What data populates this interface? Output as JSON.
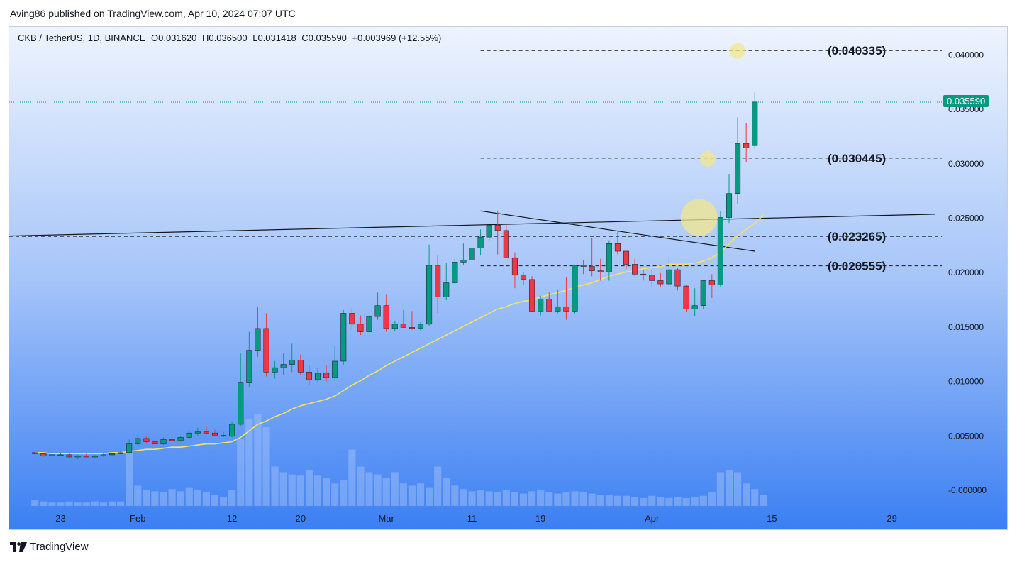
{
  "header": {
    "published": "Aving86 published on TradingView.com, Apr 10, 2024 07:07 UTC"
  },
  "legend": {
    "symbol": "CKB / TetherUS, 1D, BINANCE",
    "open": "O0.031620",
    "high": "H0.036500",
    "low": "L0.031418",
    "close": "C0.035590",
    "change": "+0.003969 (+12.55%)"
  },
  "footer": {
    "brand": "TradingView"
  },
  "colors": {
    "up": "#089981",
    "down": "#f23645",
    "ma": "#f5e26b",
    "bg_top": "#e8f0fe",
    "bg_bottom": "#3d80f5",
    "highlight": "#f3e78c"
  },
  "chart_data": {
    "type": "candlestick",
    "symbol": "CKB / TetherUS",
    "timeframe": "1D",
    "exchange": "BINANCE",
    "y_ticks": [
      "0.040000",
      "0.035000",
      "0.030000",
      "0.025000",
      "0.020000",
      "0.015000",
      "0.010000",
      "0.005000",
      "-0.000000"
    ],
    "y_tick_values": [
      0.04,
      0.035,
      0.03,
      0.025,
      0.02,
      0.015,
      0.01,
      0.005,
      0
    ],
    "ylim": [
      -0.0015,
      0.0425
    ],
    "x_ticks": [
      {
        "label": "23",
        "day": 3
      },
      {
        "label": "Feb",
        "day": 12
      },
      {
        "label": "12",
        "day": 23
      },
      {
        "label": "20",
        "day": 31
      },
      {
        "label": "Mar",
        "day": 41
      },
      {
        "label": "11",
        "day": 51
      },
      {
        "label": "19",
        "day": 59
      },
      {
        "label": "Apr",
        "day": 72
      },
      {
        "label": "15",
        "day": 86
      },
      {
        "label": "29",
        "day": 100
      }
    ],
    "x_range": [
      -3,
      105
    ],
    "last_price": "0.035590",
    "levels": [
      {
        "value": 0.040335,
        "label": "(0.040335)",
        "start_day": 52
      },
      {
        "value": 0.030445,
        "label": "(0.030445)",
        "start_day": 52
      },
      {
        "value": 0.023265,
        "label": "(0.023265)",
        "start_day": -3
      },
      {
        "value": 0.020555,
        "label": "(0.020555)",
        "start_day": 52
      }
    ],
    "trendlines": [
      {
        "x1": -3,
        "y1": 0.0233,
        "x2": 105,
        "y2": 0.0253
      },
      {
        "x1": 52,
        "y1": 0.0256,
        "x2": 84,
        "y2": 0.0219
      }
    ],
    "highlights": [
      {
        "day": 82,
        "value": 0.0403,
        "r": "small"
      },
      {
        "day": 78.5,
        "value": 0.0304,
        "r": "small"
      },
      {
        "day": 77.5,
        "value": 0.025,
        "r": "large"
      }
    ],
    "candles": [
      {
        "o": 0.0034,
        "h": 0.0035,
        "l": 0.0031,
        "c": 0.0033
      },
      {
        "o": 0.0033,
        "h": 0.0034,
        "l": 0.003,
        "c": 0.0031
      },
      {
        "o": 0.0031,
        "h": 0.0033,
        "l": 0.003,
        "c": 0.0032
      },
      {
        "o": 0.0032,
        "h": 0.0034,
        "l": 0.0031,
        "c": 0.0032
      },
      {
        "o": 0.0032,
        "h": 0.0033,
        "l": 0.0029,
        "c": 0.003
      },
      {
        "o": 0.003,
        "h": 0.0032,
        "l": 0.0028,
        "c": 0.0031
      },
      {
        "o": 0.0031,
        "h": 0.0033,
        "l": 0.003,
        "c": 0.003
      },
      {
        "o": 0.003,
        "h": 0.0032,
        "l": 0.0029,
        "c": 0.0031
      },
      {
        "o": 0.0031,
        "h": 0.0034,
        "l": 0.003,
        "c": 0.0032
      },
      {
        "o": 0.0032,
        "h": 0.0034,
        "l": 0.0031,
        "c": 0.0033
      },
      {
        "o": 0.0033,
        "h": 0.0036,
        "l": 0.0032,
        "c": 0.0034
      },
      {
        "o": 0.0034,
        "h": 0.0046,
        "l": 0.0033,
        "c": 0.0042
      },
      {
        "o": 0.0042,
        "h": 0.0051,
        "l": 0.004,
        "c": 0.0047
      },
      {
        "o": 0.0047,
        "h": 0.0049,
        "l": 0.0043,
        "c": 0.0044
      },
      {
        "o": 0.0044,
        "h": 0.0046,
        "l": 0.0041,
        "c": 0.0042
      },
      {
        "o": 0.0042,
        "h": 0.0048,
        "l": 0.0041,
        "c": 0.0046
      },
      {
        "o": 0.0046,
        "h": 0.0047,
        "l": 0.0043,
        "c": 0.0045
      },
      {
        "o": 0.0045,
        "h": 0.0049,
        "l": 0.0044,
        "c": 0.0048
      },
      {
        "o": 0.0048,
        "h": 0.0055,
        "l": 0.0046,
        "c": 0.0052
      },
      {
        "o": 0.0052,
        "h": 0.0057,
        "l": 0.0049,
        "c": 0.0053
      },
      {
        "o": 0.0053,
        "h": 0.0058,
        "l": 0.0051,
        "c": 0.0052
      },
      {
        "o": 0.0052,
        "h": 0.0055,
        "l": 0.0049,
        "c": 0.005
      },
      {
        "o": 0.005,
        "h": 0.0053,
        "l": 0.0048,
        "c": 0.0049
      },
      {
        "o": 0.0049,
        "h": 0.0062,
        "l": 0.0048,
        "c": 0.006
      },
      {
        "o": 0.006,
        "h": 0.0125,
        "l": 0.0058,
        "c": 0.0098
      },
      {
        "o": 0.0098,
        "h": 0.0145,
        "l": 0.0094,
        "c": 0.0128
      },
      {
        "o": 0.0128,
        "h": 0.0168,
        "l": 0.0122,
        "c": 0.0148
      },
      {
        "o": 0.0148,
        "h": 0.0162,
        "l": 0.0104,
        "c": 0.0108
      },
      {
        "o": 0.0108,
        "h": 0.0118,
        "l": 0.0102,
        "c": 0.0112
      },
      {
        "o": 0.0112,
        "h": 0.0125,
        "l": 0.0105,
        "c": 0.0115
      },
      {
        "o": 0.0115,
        "h": 0.0134,
        "l": 0.0108,
        "c": 0.0119
      },
      {
        "o": 0.0119,
        "h": 0.0124,
        "l": 0.0105,
        "c": 0.0108
      },
      {
        "o": 0.0108,
        "h": 0.0114,
        "l": 0.0096,
        "c": 0.0101
      },
      {
        "o": 0.0101,
        "h": 0.0112,
        "l": 0.0099,
        "c": 0.0107
      },
      {
        "o": 0.0107,
        "h": 0.0114,
        "l": 0.0099,
        "c": 0.0103
      },
      {
        "o": 0.0103,
        "h": 0.0132,
        "l": 0.0101,
        "c": 0.0118
      },
      {
        "o": 0.0118,
        "h": 0.0165,
        "l": 0.0114,
        "c": 0.0162
      },
      {
        "o": 0.0162,
        "h": 0.0167,
        "l": 0.0147,
        "c": 0.0152
      },
      {
        "o": 0.0152,
        "h": 0.016,
        "l": 0.0142,
        "c": 0.0145
      },
      {
        "o": 0.0145,
        "h": 0.0168,
        "l": 0.0142,
        "c": 0.0159
      },
      {
        "o": 0.0159,
        "h": 0.0181,
        "l": 0.0156,
        "c": 0.0169
      },
      {
        "o": 0.0169,
        "h": 0.0179,
        "l": 0.0145,
        "c": 0.0148
      },
      {
        "o": 0.0148,
        "h": 0.0155,
        "l": 0.0146,
        "c": 0.0152
      },
      {
        "o": 0.0152,
        "h": 0.0165,
        "l": 0.0149,
        "c": 0.0149
      },
      {
        "o": 0.0149,
        "h": 0.0164,
        "l": 0.0147,
        "c": 0.0148
      },
      {
        "o": 0.0148,
        "h": 0.0154,
        "l": 0.0146,
        "c": 0.0152
      },
      {
        "o": 0.0152,
        "h": 0.0225,
        "l": 0.015,
        "c": 0.0206
      },
      {
        "o": 0.0206,
        "h": 0.0215,
        "l": 0.0162,
        "c": 0.0177
      },
      {
        "o": 0.0177,
        "h": 0.0208,
        "l": 0.0174,
        "c": 0.019
      },
      {
        "o": 0.019,
        "h": 0.0212,
        "l": 0.0188,
        "c": 0.0209
      },
      {
        "o": 0.0209,
        "h": 0.0226,
        "l": 0.0206,
        "c": 0.0211
      },
      {
        "o": 0.0211,
        "h": 0.0234,
        "l": 0.0205,
        "c": 0.0222
      },
      {
        "o": 0.0222,
        "h": 0.0239,
        "l": 0.0215,
        "c": 0.0232
      },
      {
        "o": 0.0232,
        "h": 0.0242,
        "l": 0.0228,
        "c": 0.0243
      },
      {
        "o": 0.0243,
        "h": 0.0256,
        "l": 0.0216,
        "c": 0.0238
      },
      {
        "o": 0.0238,
        "h": 0.0243,
        "l": 0.0215,
        "c": 0.0213
      },
      {
        "o": 0.0213,
        "h": 0.0218,
        "l": 0.0185,
        "c": 0.0197
      },
      {
        "o": 0.0197,
        "h": 0.02,
        "l": 0.0188,
        "c": 0.0193
      },
      {
        "o": 0.0193,
        "h": 0.0196,
        "l": 0.0163,
        "c": 0.0164
      },
      {
        "o": 0.0164,
        "h": 0.0178,
        "l": 0.016,
        "c": 0.0175
      },
      {
        "o": 0.0175,
        "h": 0.0181,
        "l": 0.0165,
        "c": 0.0164
      },
      {
        "o": 0.0164,
        "h": 0.0184,
        "l": 0.0162,
        "c": 0.0168
      },
      {
        "o": 0.0168,
        "h": 0.0195,
        "l": 0.0156,
        "c": 0.0164
      },
      {
        "o": 0.0164,
        "h": 0.0206,
        "l": 0.0162,
        "c": 0.0206
      },
      {
        "o": 0.0206,
        "h": 0.0211,
        "l": 0.0198,
        "c": 0.0205
      },
      {
        "o": 0.0205,
        "h": 0.0231,
        "l": 0.0196,
        "c": 0.0201
      },
      {
        "o": 0.0201,
        "h": 0.0212,
        "l": 0.0192,
        "c": 0.02
      },
      {
        "o": 0.02,
        "h": 0.0229,
        "l": 0.0192,
        "c": 0.0226
      },
      {
        "o": 0.0226,
        "h": 0.0238,
        "l": 0.0216,
        "c": 0.0219
      },
      {
        "o": 0.0219,
        "h": 0.022,
        "l": 0.0203,
        "c": 0.0207
      },
      {
        "o": 0.0207,
        "h": 0.0212,
        "l": 0.0196,
        "c": 0.0198
      },
      {
        "o": 0.0198,
        "h": 0.0202,
        "l": 0.0192,
        "c": 0.0197
      },
      {
        "o": 0.0197,
        "h": 0.0202,
        "l": 0.0186,
        "c": 0.0192
      },
      {
        "o": 0.0192,
        "h": 0.0199,
        "l": 0.0186,
        "c": 0.0189
      },
      {
        "o": 0.0189,
        "h": 0.0214,
        "l": 0.0187,
        "c": 0.0202
      },
      {
        "o": 0.0202,
        "h": 0.0204,
        "l": 0.0183,
        "c": 0.0187
      },
      {
        "o": 0.0187,
        "h": 0.0188,
        "l": 0.0163,
        "c": 0.0166
      },
      {
        "o": 0.0166,
        "h": 0.0185,
        "l": 0.0159,
        "c": 0.0169
      },
      {
        "o": 0.0169,
        "h": 0.019,
        "l": 0.0166,
        "c": 0.0192
      },
      {
        "o": 0.0192,
        "h": 0.0198,
        "l": 0.0176,
        "c": 0.0188
      },
      {
        "o": 0.0188,
        "h": 0.0256,
        "l": 0.0186,
        "c": 0.025
      },
      {
        "o": 0.025,
        "h": 0.029,
        "l": 0.0245,
        "c": 0.0272
      },
      {
        "o": 0.0272,
        "h": 0.0342,
        "l": 0.0262,
        "c": 0.0318
      },
      {
        "o": 0.0318,
        "h": 0.0337,
        "l": 0.0301,
        "c": 0.0314
      },
      {
        "o": 0.0316,
        "h": 0.0365,
        "l": 0.0314,
        "c": 0.0356
      }
    ],
    "ma": [
      0.0034,
      0.0034,
      0.0033,
      0.0033,
      0.0033,
      0.0033,
      0.0033,
      0.0033,
      0.0033,
      0.0034,
      0.0034,
      0.0035,
      0.0036,
      0.0037,
      0.0037,
      0.0038,
      0.0039,
      0.0039,
      0.004,
      0.0041,
      0.0042,
      0.0042,
      0.0043,
      0.0044,
      0.0048,
      0.0054,
      0.006,
      0.0063,
      0.0067,
      0.007,
      0.0074,
      0.0077,
      0.0079,
      0.0081,
      0.0083,
      0.0086,
      0.0091,
      0.0096,
      0.01,
      0.0105,
      0.0109,
      0.0114,
      0.0118,
      0.0122,
      0.0126,
      0.013,
      0.0134,
      0.0138,
      0.0142,
      0.0146,
      0.015,
      0.0154,
      0.0158,
      0.0162,
      0.0166,
      0.0168,
      0.0171,
      0.0173,
      0.0174,
      0.0177,
      0.0179,
      0.0181,
      0.0183,
      0.0186,
      0.0188,
      0.019,
      0.0193,
      0.0196,
      0.0198,
      0.02,
      0.0201,
      0.0203,
      0.0204,
      0.0205,
      0.0207,
      0.0207,
      0.0207,
      0.0208,
      0.021,
      0.0213,
      0.0218,
      0.0226,
      0.0233,
      0.0239,
      0.0245,
      0.0252
    ],
    "volume": [
      5,
      4,
      3,
      3,
      4,
      3,
      3,
      4,
      3,
      4,
      4,
      50,
      18,
      14,
      13,
      12,
      15,
      13,
      16,
      14,
      12,
      10,
      8,
      14,
      60,
      77,
      82,
      70,
      35,
      30,
      28,
      27,
      32,
      27,
      25,
      20,
      23,
      50,
      35,
      30,
      28,
      25,
      30,
      20,
      18,
      20,
      16,
      35,
      25,
      18,
      15,
      13,
      14,
      13,
      12,
      14,
      12,
      11,
      13,
      14,
      12,
      11,
      12,
      13,
      12,
      11,
      10,
      10,
      9,
      9,
      8,
      7,
      9,
      8,
      7,
      8,
      7,
      8,
      9,
      12,
      30,
      32,
      30,
      20,
      15,
      10
    ]
  }
}
